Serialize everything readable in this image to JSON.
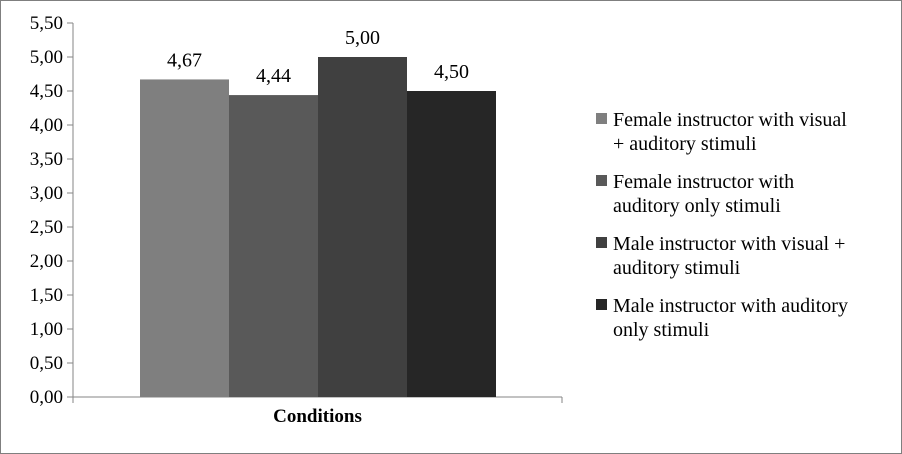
{
  "chart_data": {
    "type": "bar",
    "categories": [
      "Conditions"
    ],
    "xlabel": "Conditions",
    "ylabel": "",
    "title": "",
    "ylim": [
      0,
      5.5
    ],
    "ytick_step": 0.5,
    "yticks": [
      "0,00",
      "0,50",
      "1,00",
      "1,50",
      "2,00",
      "2,50",
      "3,00",
      "3,50",
      "4,00",
      "4,50",
      "5,00",
      "5,50"
    ],
    "grid": false,
    "legend_position": "right",
    "series": [
      {
        "name": "Female instructor with visual + auditory stimuli",
        "name_lines": [
          "Female instructor with visual",
          "+ auditory stimuli"
        ],
        "values": [
          4.67
        ],
        "label": "4,67",
        "color": "#7f7f7f"
      },
      {
        "name": "Female instructor with auditory only stimuli",
        "name_lines": [
          "Female instructor with",
          "auditory only stimuli"
        ],
        "values": [
          4.44
        ],
        "label": "4,44",
        "color": "#595959"
      },
      {
        "name": "Male instructor with visual + auditory stimuli",
        "name_lines": [
          "Male instructor with visual +",
          "auditory stimuli"
        ],
        "values": [
          5.0
        ],
        "label": "5,00",
        "color": "#404040"
      },
      {
        "name": "Male instructor with auditory only stimuli",
        "name_lines": [
          "Male instructor with auditory",
          "only stimuli"
        ],
        "values": [
          4.5
        ],
        "label": "4,50",
        "color": "#262626"
      }
    ]
  }
}
